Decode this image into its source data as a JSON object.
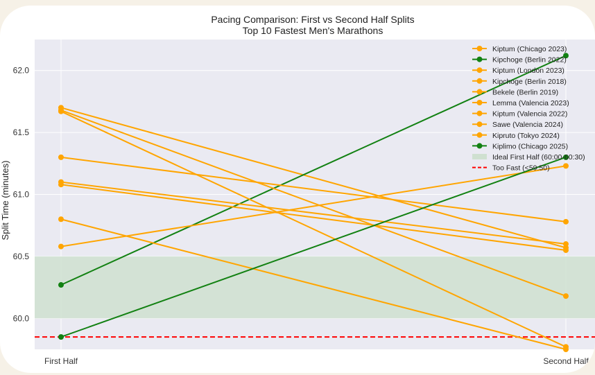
{
  "chart_data": {
    "type": "line",
    "title": "Pacing Comparison: First vs Second Half Splits",
    "subtitle": "Top 10 Fastest Men's Marathons",
    "xlabel": "",
    "ylabel": "Split Time (minutes)",
    "categories": [
      "First Half",
      "Second Half"
    ],
    "ylim": [
      59.75,
      62.25
    ],
    "yticks": [
      "60.0",
      "60.5",
      "61.0",
      "61.5",
      "62.0"
    ],
    "grid": true,
    "legend_position": "top-right",
    "series": [
      {
        "name": "Kiptum (Chicago 2023)",
        "color": "#ffa500",
        "values": [
          61.7,
          60.57
        ]
      },
      {
        "name": "Kipchoge (Berlin 2022)",
        "color": "#128112",
        "values": [
          60.27,
          62.12
        ]
      },
      {
        "name": "Kiptum (London 2023)",
        "color": "#ffa500",
        "values": [
          61.67,
          59.77
        ]
      },
      {
        "name": "Kipchoge (Berlin 2018)",
        "color": "#ffa500",
        "values": [
          61.1,
          60.6
        ]
      },
      {
        "name": "Bekele (Berlin 2019)",
        "color": "#ffa500",
        "values": [
          61.08,
          60.55
        ]
      },
      {
        "name": "Lemma (Valencia 2023)",
        "color": "#ffa500",
        "values": [
          61.3,
          60.78
        ]
      },
      {
        "name": "Kiptum (Valencia 2022)",
        "color": "#ffa500",
        "values": [
          60.8,
          59.75
        ]
      },
      {
        "name": "Sawe (Valencia 2024)",
        "color": "#ffa500",
        "values": [
          60.58,
          61.23
        ]
      },
      {
        "name": "Kipruto (Tokyo 2024)",
        "color": "#ffa500",
        "values": [
          61.68,
          60.18
        ]
      },
      {
        "name": "Kiplimo (Chicago 2025)",
        "color": "#128112",
        "values": [
          59.85,
          61.3
        ]
      }
    ],
    "bands": [
      {
        "name": "Ideal First Half (60:00-60:30)",
        "from": 60.0,
        "to": 60.5,
        "color": "#cfe0d0"
      }
    ],
    "reference_lines": [
      {
        "name": "Too Fast (<59:50)",
        "value": 59.85,
        "color": "#ff0000",
        "style": "dashed"
      }
    ]
  }
}
